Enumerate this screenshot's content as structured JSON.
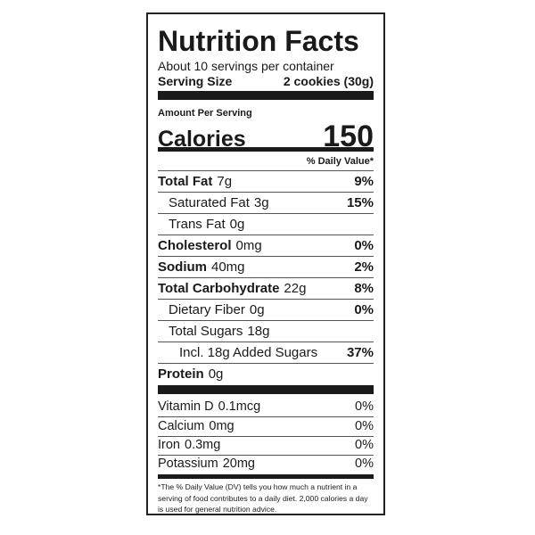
{
  "title": "Nutrition Facts",
  "servings": "About 10 servings per container",
  "serving_size": {
    "label": "Serving Size",
    "value": "2 cookies (30g)"
  },
  "amount_per_serving": "Amount Per Serving",
  "calories": {
    "label": "Calories",
    "value": 150
  },
  "dv_header": "% Daily Value*",
  "nutrients": [
    {
      "name": "Total Fat",
      "amount": "7g",
      "dv": "9%"
    },
    {
      "name": "Saturated Fat",
      "amount": "3g",
      "dv": "15%"
    },
    {
      "name": "Trans Fat",
      "amount": "0g"
    },
    {
      "name": "Cholesterol",
      "amount": "0mg",
      "dv": "0%"
    },
    {
      "name": "Sodium",
      "amount": "40mg",
      "dv": "2%"
    },
    {
      "name": "Total Carbohydrate",
      "amount": "22g",
      "dv": "8%"
    },
    {
      "name": "Dietary Fiber",
      "amount": "0g",
      "dv": "0%"
    },
    {
      "name": "Total Sugars",
      "amount": "18g"
    },
    {
      "name": "Incl. 18g Added Sugars",
      "dv": "37%"
    },
    {
      "name": "Protein",
      "amount": "0g"
    }
  ],
  "vitamins": [
    {
      "name": "Vitamin D",
      "amount": "0.1mcg",
      "dv": "0%"
    },
    {
      "name": "Calcium",
      "amount": "0mg",
      "dv": "0%"
    },
    {
      "name": "Iron",
      "amount": "0.3mg",
      "dv": "0%"
    },
    {
      "name": "Potassium",
      "amount": "20mg",
      "dv": "0%"
    }
  ],
  "footnote": "*The % Daily Value (DV) tells you how much a nutrient in a serving of food contributes to a daily diet. 2,000 calories a day is used for general nutrition advice."
}
